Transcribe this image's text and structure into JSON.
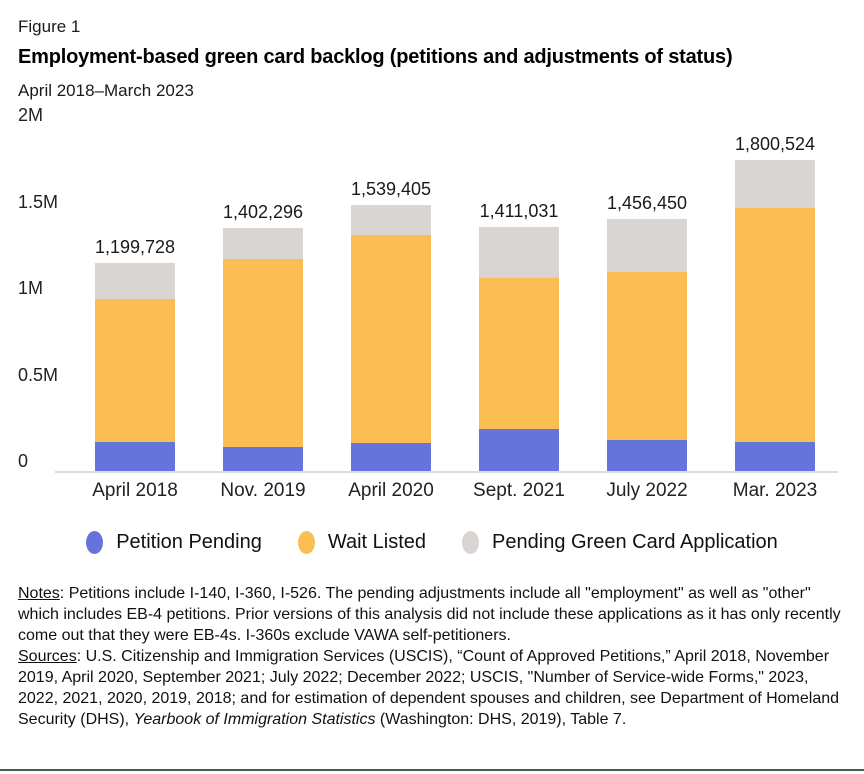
{
  "figure": {
    "label": "Figure 1",
    "title": "Employment-based green card backlog (petitions and adjustments of status)",
    "subtitle": "April 2018–March 2023"
  },
  "chart_data": {
    "type": "bar",
    "stacked": true,
    "title": "Employment-based green card backlog (petitions and adjustments of status)",
    "subtitle": "April 2018–March 2023",
    "categories": [
      "April 2018",
      "Nov. 2019",
      "April 2020",
      "Sept. 2021",
      "July 2022",
      "Mar. 2023"
    ],
    "series": [
      {
        "name": "Petition Pending",
        "color": "#6673DA",
        "values": [
          170000,
          140000,
          163000,
          245000,
          181000,
          170000
        ]
      },
      {
        "name": "Wait Listed",
        "color": "#FBBE53",
        "values": [
          825000,
          1087296,
          1200405,
          873031,
          971450,
          1349524
        ]
      },
      {
        "name": "Pending Green Card Application",
        "color": "#D8D5D3",
        "values": [
          204728,
          175000,
          176000,
          293000,
          304000,
          281000
        ]
      }
    ],
    "totals": [
      1199728,
      1402296,
      1539405,
      1411031,
      1456450,
      1800524
    ],
    "total_labels": [
      "1,199,728",
      "1,402,296",
      "1,539,405",
      "1,411,031",
      "1,456,450",
      "1,800,524"
    ],
    "y_ticks": [
      "2M",
      "1.5M",
      "1M",
      "0.5M",
      "0"
    ],
    "y_tick_values": [
      2000000,
      1500000,
      1000000,
      500000,
      0
    ],
    "ylim": [
      0,
      2000000
    ],
    "grid": false,
    "legend_position": "bottom",
    "series_values_note": "segment values estimated from bar pixel heights; totals are labeled on chart"
  },
  "notes": {
    "label": "Notes",
    "body": ": Petitions include I-140, I-360, I-526. The pending adjustments include all \"employment\" as well as \"other\" which includes EB-4 petitions. Prior versions of this analysis did not include these applications as it has only recently come out that they were EB-4s. I-360s exclude VAWA self-petitioners."
  },
  "sources": {
    "label": "Sources",
    "body_start": ": U.S. Citizenship and Immigration Services (USCIS), “Count of Approved Petitions,” April 2018, November 2019, April 2020, September 2021; July 2022; December 2022; USCIS, \"Number of Service-wide Forms,\" 2023, 2022, 2021, 2020, 2019, 2018; and for estimation of dependent spouses and children, see Department of Homeland Security (DHS), ",
    "body_italic": "Yearbook of Immigration Statistics",
    "body_end": " (Washington: DHS, 2019), Table 7."
  }
}
